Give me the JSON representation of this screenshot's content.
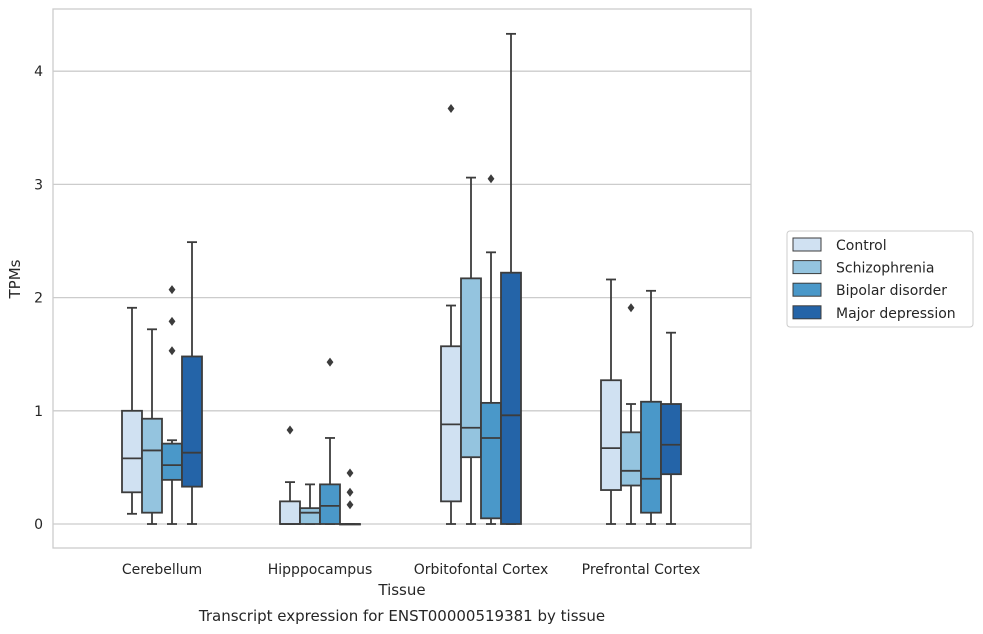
{
  "chart_data": {
    "type": "box",
    "caption": "Transcript expression for ENST00000519381 by tissue",
    "xlabel": "Tissue",
    "ylabel": "TPMs",
    "ylim": [
      -0.2,
      4.55
    ],
    "yticks": [
      0,
      1,
      2,
      3,
      4
    ],
    "grid": true,
    "legend_position": "right",
    "categories": [
      "Cerebellum",
      "Hipppocampus",
      "Orbitofontal Cortex",
      "Prefrontal Cortex"
    ],
    "series": [
      {
        "name": "Control",
        "color": "#d0e1f2",
        "boxes": [
          {
            "whislo": 0.09,
            "q1": 0.28,
            "med": 0.58,
            "q3": 1.0,
            "whishi": 1.91,
            "fliers": []
          },
          {
            "whislo": 0.0,
            "q1": 0.0,
            "med": 0.0,
            "q3": 0.2,
            "whishi": 0.37,
            "fliers": [
              0.83
            ]
          },
          {
            "whislo": 0.0,
            "q1": 0.2,
            "med": 0.88,
            "q3": 1.57,
            "whishi": 1.93,
            "fliers": [
              3.67
            ]
          },
          {
            "whislo": 0.0,
            "q1": 0.3,
            "med": 0.67,
            "q3": 1.27,
            "whishi": 2.16,
            "fliers": []
          }
        ]
      },
      {
        "name": "Schizophrenia",
        "color": "#94c4df",
        "boxes": [
          {
            "whislo": 0.0,
            "q1": 0.1,
            "med": 0.65,
            "q3": 0.93,
            "whishi": 1.72,
            "fliers": []
          },
          {
            "whislo": 0.0,
            "q1": 0.0,
            "med": 0.1,
            "q3": 0.14,
            "whishi": 0.35,
            "fliers": []
          },
          {
            "whislo": 0.0,
            "q1": 0.59,
            "med": 0.85,
            "q3": 2.17,
            "whishi": 3.06,
            "fliers": []
          },
          {
            "whislo": 0.0,
            "q1": 0.34,
            "med": 0.47,
            "q3": 0.81,
            "whishi": 1.06,
            "fliers": [
              1.91
            ]
          }
        ]
      },
      {
        "name": "Bipolar disorder",
        "color": "#4a98c9",
        "boxes": [
          {
            "whislo": 0.0,
            "q1": 0.39,
            "med": 0.52,
            "q3": 0.71,
            "whishi": 0.74,
            "fliers": [
              1.53,
              1.79,
              2.07
            ]
          },
          {
            "whislo": 0.0,
            "q1": 0.0,
            "med": 0.16,
            "q3": 0.35,
            "whishi": 0.76,
            "fliers": [
              1.43
            ]
          },
          {
            "whislo": 0.0,
            "q1": 0.05,
            "med": 0.76,
            "q3": 1.07,
            "whishi": 2.4,
            "fliers": [
              3.05
            ]
          },
          {
            "whislo": 0.0,
            "q1": 0.1,
            "med": 0.4,
            "q3": 1.08,
            "whishi": 2.06,
            "fliers": []
          }
        ]
      },
      {
        "name": "Major depression",
        "color": "#2464a8",
        "boxes": [
          {
            "whislo": 0.0,
            "q1": 0.33,
            "med": 0.63,
            "q3": 1.48,
            "whishi": 2.49,
            "fliers": []
          },
          {
            "whislo": 0.0,
            "q1": 0.0,
            "med": 0.0,
            "q3": 0.0,
            "whishi": 0.0,
            "fliers": [
              0.17,
              0.28,
              0.45
            ]
          },
          {
            "whislo": 0.0,
            "q1": 0.0,
            "med": 0.96,
            "q3": 2.22,
            "whishi": 4.33,
            "fliers": []
          },
          {
            "whislo": 0.0,
            "q1": 0.44,
            "med": 0.7,
            "q3": 1.06,
            "whishi": 1.69,
            "fliers": []
          }
        ]
      }
    ]
  }
}
